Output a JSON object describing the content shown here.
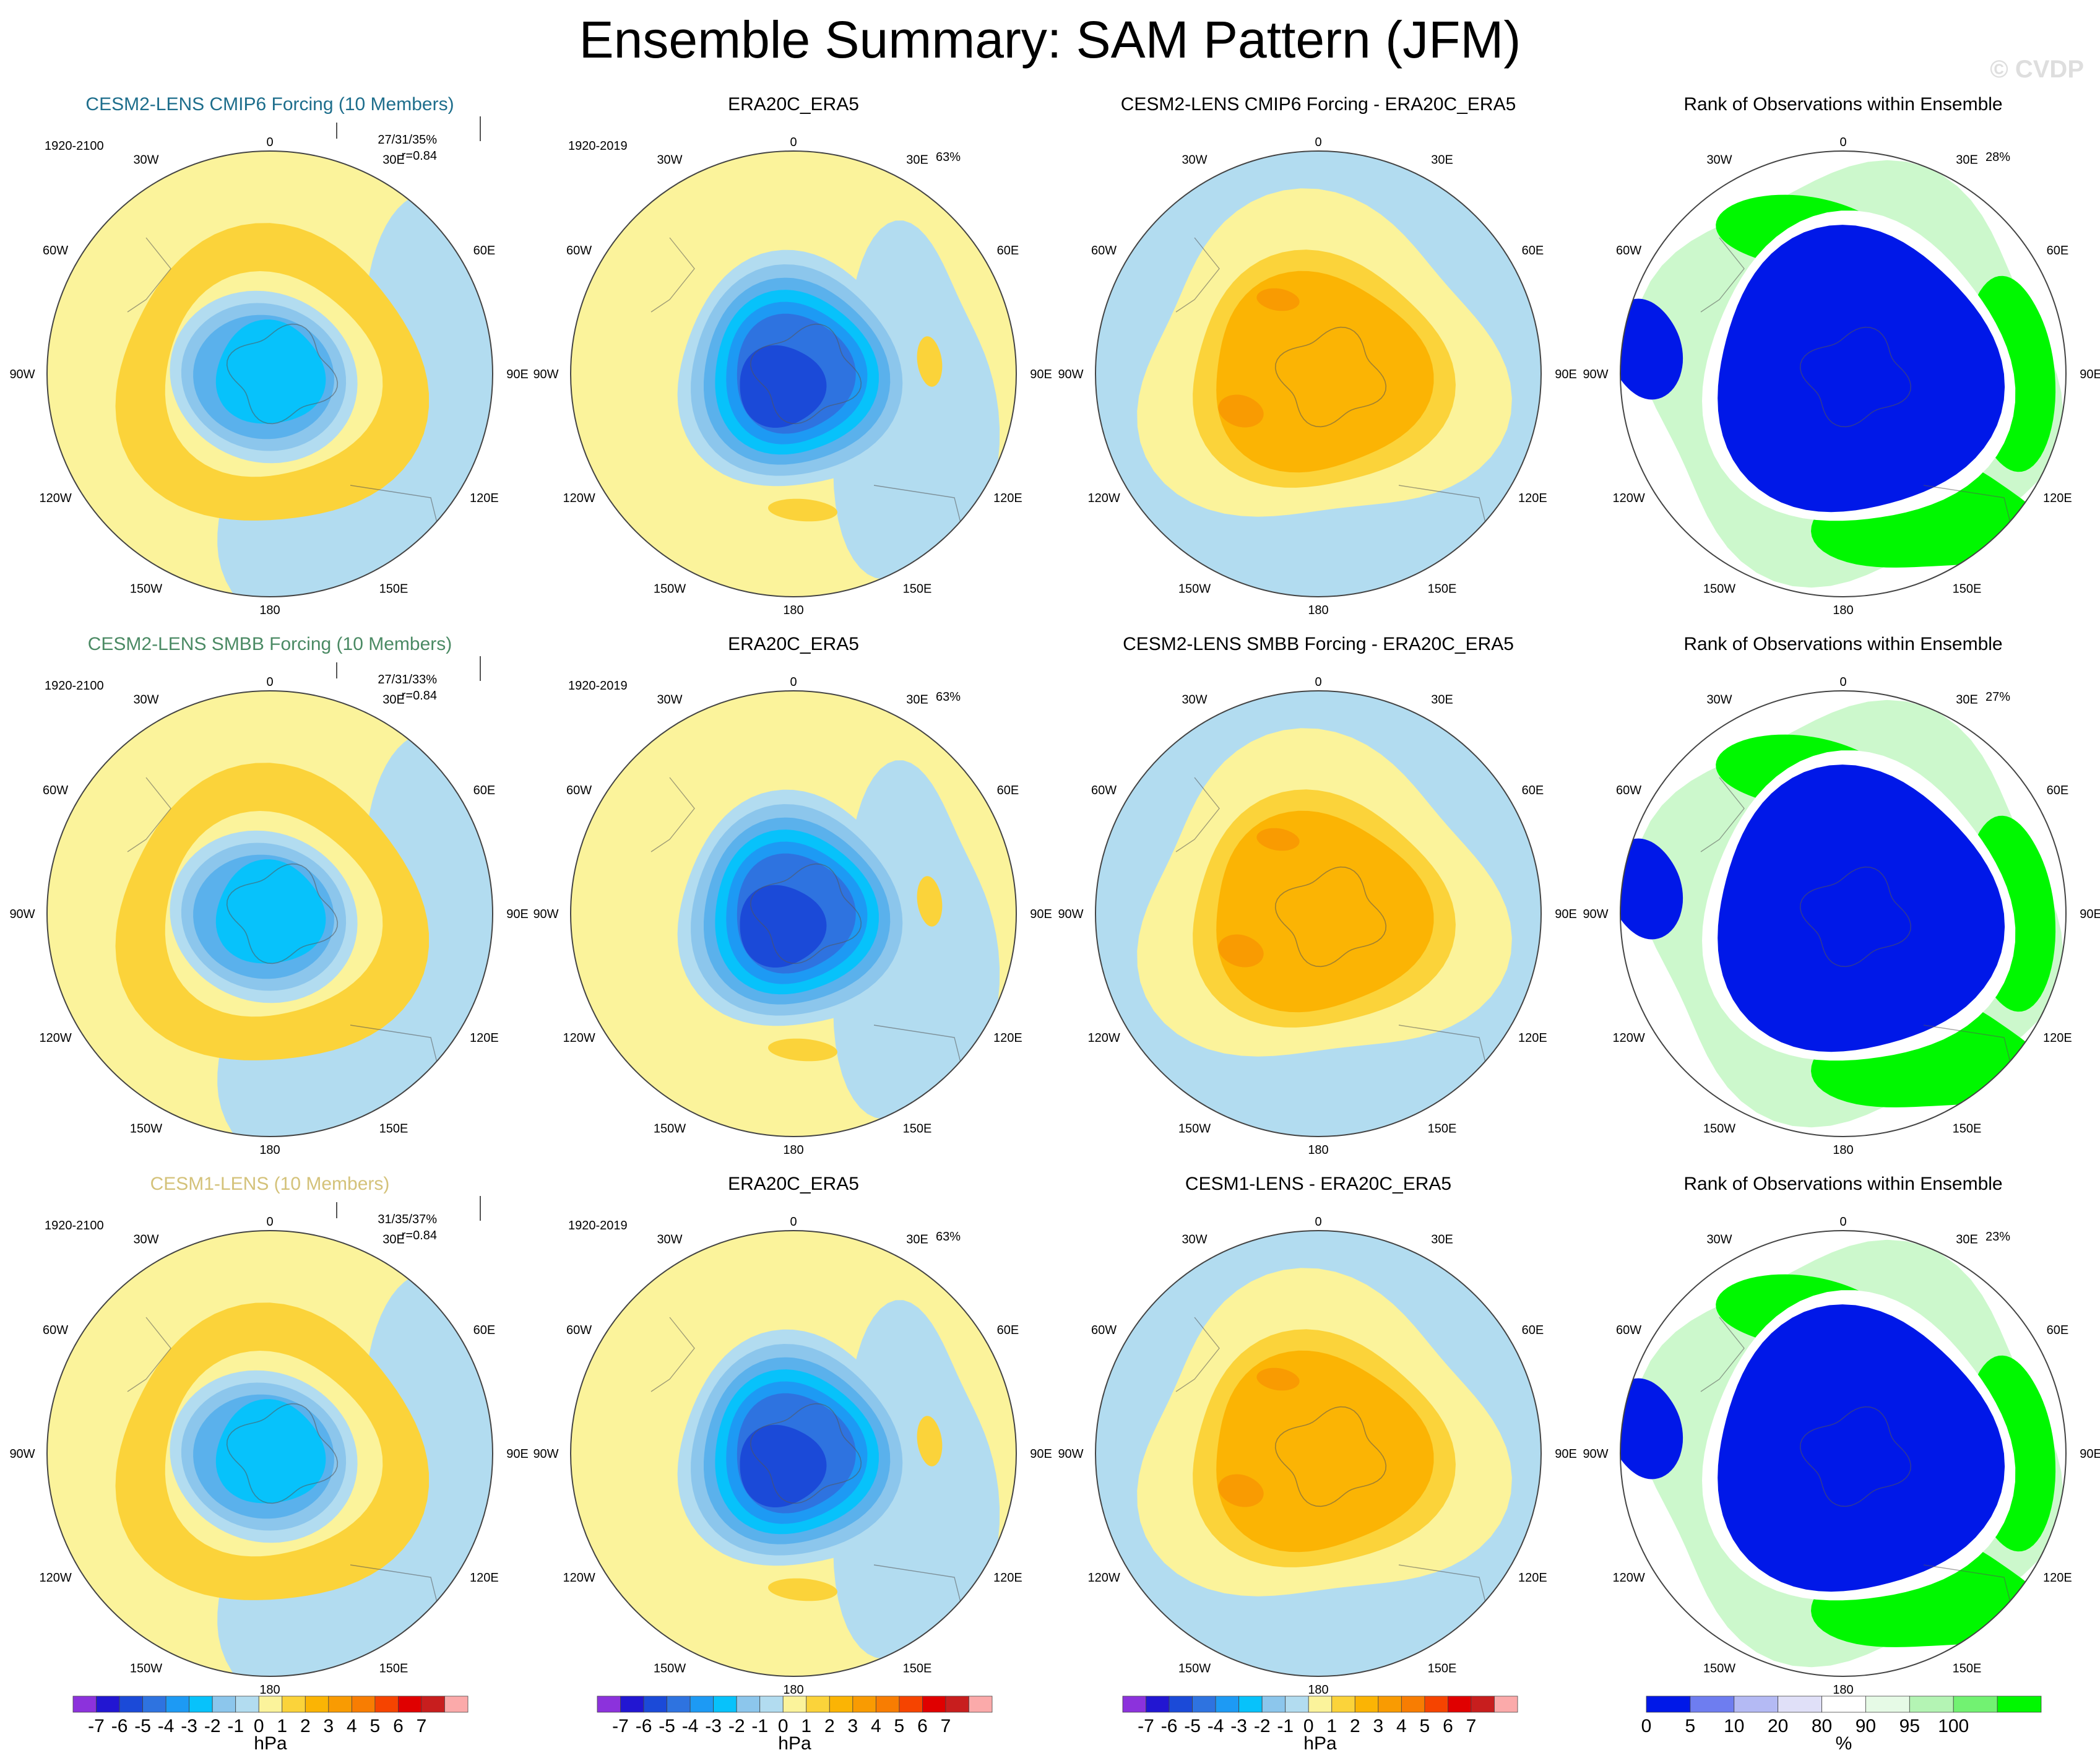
{
  "figure": {
    "title": "Ensemble Summary: SAM Pattern (JFM)",
    "copyright": "© CVDP"
  },
  "colors": {
    "ocean_light_blue": "#b2dcf0",
    "pale_yellow": "#fbf39b",
    "yellow_1": "#fbd33a",
    "orange_2": "#fbb404",
    "orange_3": "#f99b02",
    "blue_m1": "#8cc6ec",
    "blue_m2": "#5ab1ec",
    "blue_m3": "#07c2fb",
    "blue_m4": "#1d9af4",
    "blue_m5": "#2e73e0",
    "blue_m6": "#1b4ad8",
    "rank_low": "#0018e8",
    "rank_high": "#00f800",
    "rank_mid_green": "#ccf8cc",
    "rank_pale": "#e0e0f8",
    "title_cmip6": "#1e6e8c",
    "title_smbb": "#4b8a64",
    "title_cesm1": "#d4c27a"
  },
  "chart_data": [
    {
      "type": "heatmap",
      "row": 1,
      "col": 1,
      "title": "CESM2-LENS CMIP6 Forcing (10 Members)",
      "title_color": "#1e6e8c",
      "period": "1920-2100",
      "stats": [
        "27/31/35%",
        "r=0.84"
      ],
      "field": "SAM pattern, ensemble mean (hPa)",
      "units": "hPa",
      "ring_strength": 2,
      "center_value": -4
    },
    {
      "type": "heatmap",
      "row": 1,
      "col": 2,
      "title": "ERA20C_ERA5",
      "period": "1920-2019",
      "stats": [
        "63%"
      ],
      "field": "SAM pattern, observations (hPa)",
      "units": "hPa",
      "center_value": -6
    },
    {
      "type": "heatmap",
      "row": 1,
      "col": 3,
      "title": "CESM2-LENS CMIP6 Forcing - ERA20C_ERA5",
      "field": "difference (hPa)",
      "units": "hPa",
      "center_value": 3
    },
    {
      "type": "heatmap",
      "row": 1,
      "col": 4,
      "title": "Rank of Observations within Ensemble",
      "stats": [
        "28%"
      ],
      "field": "rank (%)",
      "units": "%"
    },
    {
      "type": "heatmap",
      "row": 2,
      "col": 1,
      "title": "CESM2-LENS SMBB Forcing (10 Members)",
      "title_color": "#4b8a64",
      "period": "1920-2100",
      "stats": [
        "27/31/33%",
        "r=0.84"
      ],
      "field": "SAM pattern, ensemble mean (hPa)",
      "units": "hPa",
      "ring_strength": 2,
      "center_value": -4
    },
    {
      "type": "heatmap",
      "row": 2,
      "col": 2,
      "title": "ERA20C_ERA5",
      "period": "1920-2019",
      "stats": [
        "63%"
      ],
      "field": "SAM pattern, observations (hPa)",
      "units": "hPa",
      "center_value": -6
    },
    {
      "type": "heatmap",
      "row": 2,
      "col": 3,
      "title": "CESM2-LENS SMBB Forcing - ERA20C_ERA5",
      "field": "difference (hPa)",
      "units": "hPa",
      "center_value": 3
    },
    {
      "type": "heatmap",
      "row": 2,
      "col": 4,
      "title": "Rank of Observations within Ensemble",
      "stats": [
        "27%"
      ],
      "field": "rank (%)",
      "units": "%"
    },
    {
      "type": "heatmap",
      "row": 3,
      "col": 1,
      "title": "CESM1-LENS (10 Members)",
      "title_color": "#d4c27a",
      "period": "1920-2100",
      "stats": [
        "31/35/37%",
        "r=0.84"
      ],
      "field": "SAM pattern, ensemble mean (hPa)",
      "units": "hPa",
      "ring_strength": 1,
      "center_value": -4
    },
    {
      "type": "heatmap",
      "row": 3,
      "col": 2,
      "title": "ERA20C_ERA5",
      "period": "1920-2019",
      "stats": [
        "63%"
      ],
      "field": "SAM pattern, observations (hPa)",
      "units": "hPa",
      "center_value": -6
    },
    {
      "type": "heatmap",
      "row": 3,
      "col": 3,
      "title": "CESM1-LENS - ERA20C_ERA5",
      "field": "difference (hPa)",
      "units": "hPa",
      "center_value": 4
    },
    {
      "type": "heatmap",
      "row": 3,
      "col": 4,
      "title": "Rank of Observations within Ensemble",
      "stats": [
        "23%"
      ],
      "field": "rank (%)",
      "units": "%"
    }
  ],
  "map_labels": {
    "top": "0",
    "bottom": "180",
    "left": [
      "30W",
      "60W",
      "90W",
      "120W",
      "150W"
    ],
    "right": [
      "30E",
      "60E",
      "90E",
      "120E",
      "150E"
    ]
  },
  "colorbars": {
    "hpa": {
      "unit": "hPa",
      "colors": [
        "#8c32dc",
        "#2216d2",
        "#1b4ad8",
        "#2e73e0",
        "#1d9af4",
        "#07c2fb",
        "#8cc6ec",
        "#b2dcf0",
        "#fbf39b",
        "#fbd33a",
        "#fbb404",
        "#f99b02",
        "#f87d02",
        "#f64400",
        "#e00000",
        "#c81e1e",
        "#fbaaaa"
      ],
      "ticks": [
        "-7",
        "-6",
        "-5",
        "-4",
        "-3",
        "-2",
        "-1",
        "0",
        "1",
        "2",
        "3",
        "4",
        "5",
        "6",
        "7"
      ]
    },
    "rank": {
      "unit": "%",
      "colors": [
        "#0018e8",
        "#6e7df0",
        "#b4baf4",
        "#e0e0f8",
        "#ffffff",
        "#e6fae6",
        "#b4f4b4",
        "#72f272",
        "#00f800"
      ],
      "ticks": [
        "0",
        "5",
        "10",
        "20",
        "80",
        "90",
        "95",
        "100"
      ]
    }
  }
}
